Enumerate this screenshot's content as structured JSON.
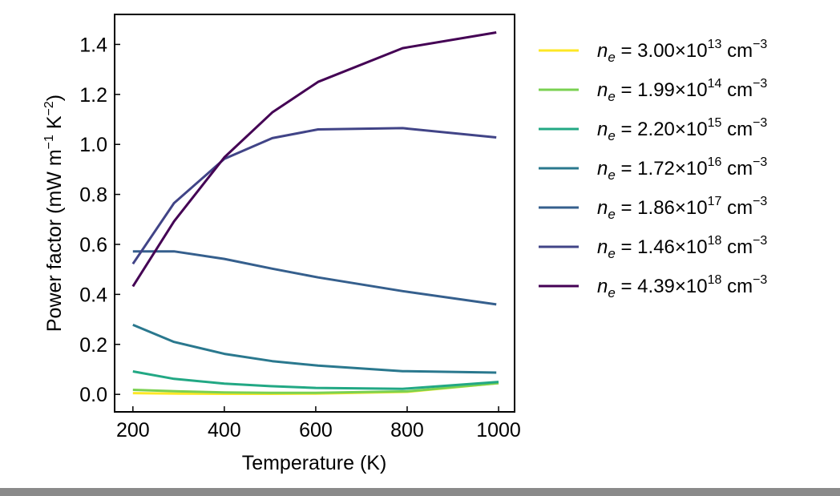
{
  "chart_data": {
    "type": "line",
    "title": "",
    "xlabel": "Temperature (K)",
    "ylabel_parts": {
      "main": "Power factor (mW m",
      "exp1": "−1",
      "mid": " K",
      "exp2": "−2",
      "end": ")"
    },
    "xlim": [
      160,
      1035
    ],
    "ylim": [
      -0.07,
      1.52
    ],
    "xticks": [
      200,
      400,
      600,
      800,
      1000
    ],
    "yticks": [
      0.0,
      0.2,
      0.4,
      0.6,
      0.8,
      1.0,
      1.2,
      1.4
    ],
    "grid": false,
    "legend_position": "outside-right",
    "series": [
      {
        "name_main": "n",
        "name_sub": "e",
        "name_val": " = 3.00×10",
        "name_exp": "13",
        "name_unit": " cm",
        "name_unit_exp": "−3",
        "color": "#fde725",
        "x": [
          200,
          300,
          400,
          500,
          600,
          800,
          1000
        ],
        "y": [
          0.005,
          0.003,
          0.002,
          0.002,
          0.003,
          0.01,
          0.045
        ]
      },
      {
        "name_main": "n",
        "name_sub": "e",
        "name_val": " = 1.99×10",
        "name_exp": "14",
        "name_unit": " cm",
        "name_unit_exp": "−3",
        "color": "#7ad151",
        "x": [
          200,
          300,
          400,
          500,
          600,
          800,
          1000
        ],
        "y": [
          0.018,
          0.012,
          0.008,
          0.006,
          0.006,
          0.012,
          0.045
        ]
      },
      {
        "name_main": "n",
        "name_sub": "e",
        "name_val": " = 2.20×10",
        "name_exp": "15",
        "name_unit": " cm",
        "name_unit_exp": "−3",
        "color": "#22a884",
        "x": [
          200,
          290,
          400,
          500,
          600,
          790,
          1000
        ],
        "y": [
          0.092,
          0.062,
          0.043,
          0.033,
          0.026,
          0.022,
          0.05
        ]
      },
      {
        "name_main": "n",
        "name_sub": "e",
        "name_val": " = 1.72×10",
        "name_exp": "16",
        "name_unit": " cm",
        "name_unit_exp": "−3",
        "color": "#2a788e",
        "x": [
          200,
          290,
          400,
          505,
          605,
          790,
          995
        ],
        "y": [
          0.278,
          0.21,
          0.162,
          0.133,
          0.115,
          0.093,
          0.087
        ]
      },
      {
        "name_main": "n",
        "name_sub": "e",
        "name_val": " = 1.86×10",
        "name_exp": "17",
        "name_unit": " cm",
        "name_unit_exp": "−3",
        "color": "#355f8d",
        "x": [
          200,
          290,
          400,
          505,
          605,
          790,
          995
        ],
        "y": [
          0.572,
          0.572,
          0.542,
          0.503,
          0.468,
          0.413,
          0.36
        ]
      },
      {
        "name_main": "n",
        "name_sub": "e",
        "name_val": " = 1.46×10",
        "name_exp": "18",
        "name_unit": " cm",
        "name_unit_exp": "−3",
        "color": "#414487",
        "x": [
          200,
          290,
          400,
          505,
          605,
          790,
          995
        ],
        "y": [
          0.522,
          0.765,
          0.942,
          1.025,
          1.06,
          1.065,
          1.028
        ]
      },
      {
        "name_main": "n",
        "name_sub": "e",
        "name_val": " = 4.39×10",
        "name_exp": "18",
        "name_unit": " cm",
        "name_unit_exp": "−3",
        "color": "#440154",
        "x": [
          200,
          290,
          400,
          505,
          605,
          790,
          995
        ],
        "y": [
          0.432,
          0.692,
          0.948,
          1.128,
          1.25,
          1.385,
          1.448
        ]
      }
    ]
  }
}
